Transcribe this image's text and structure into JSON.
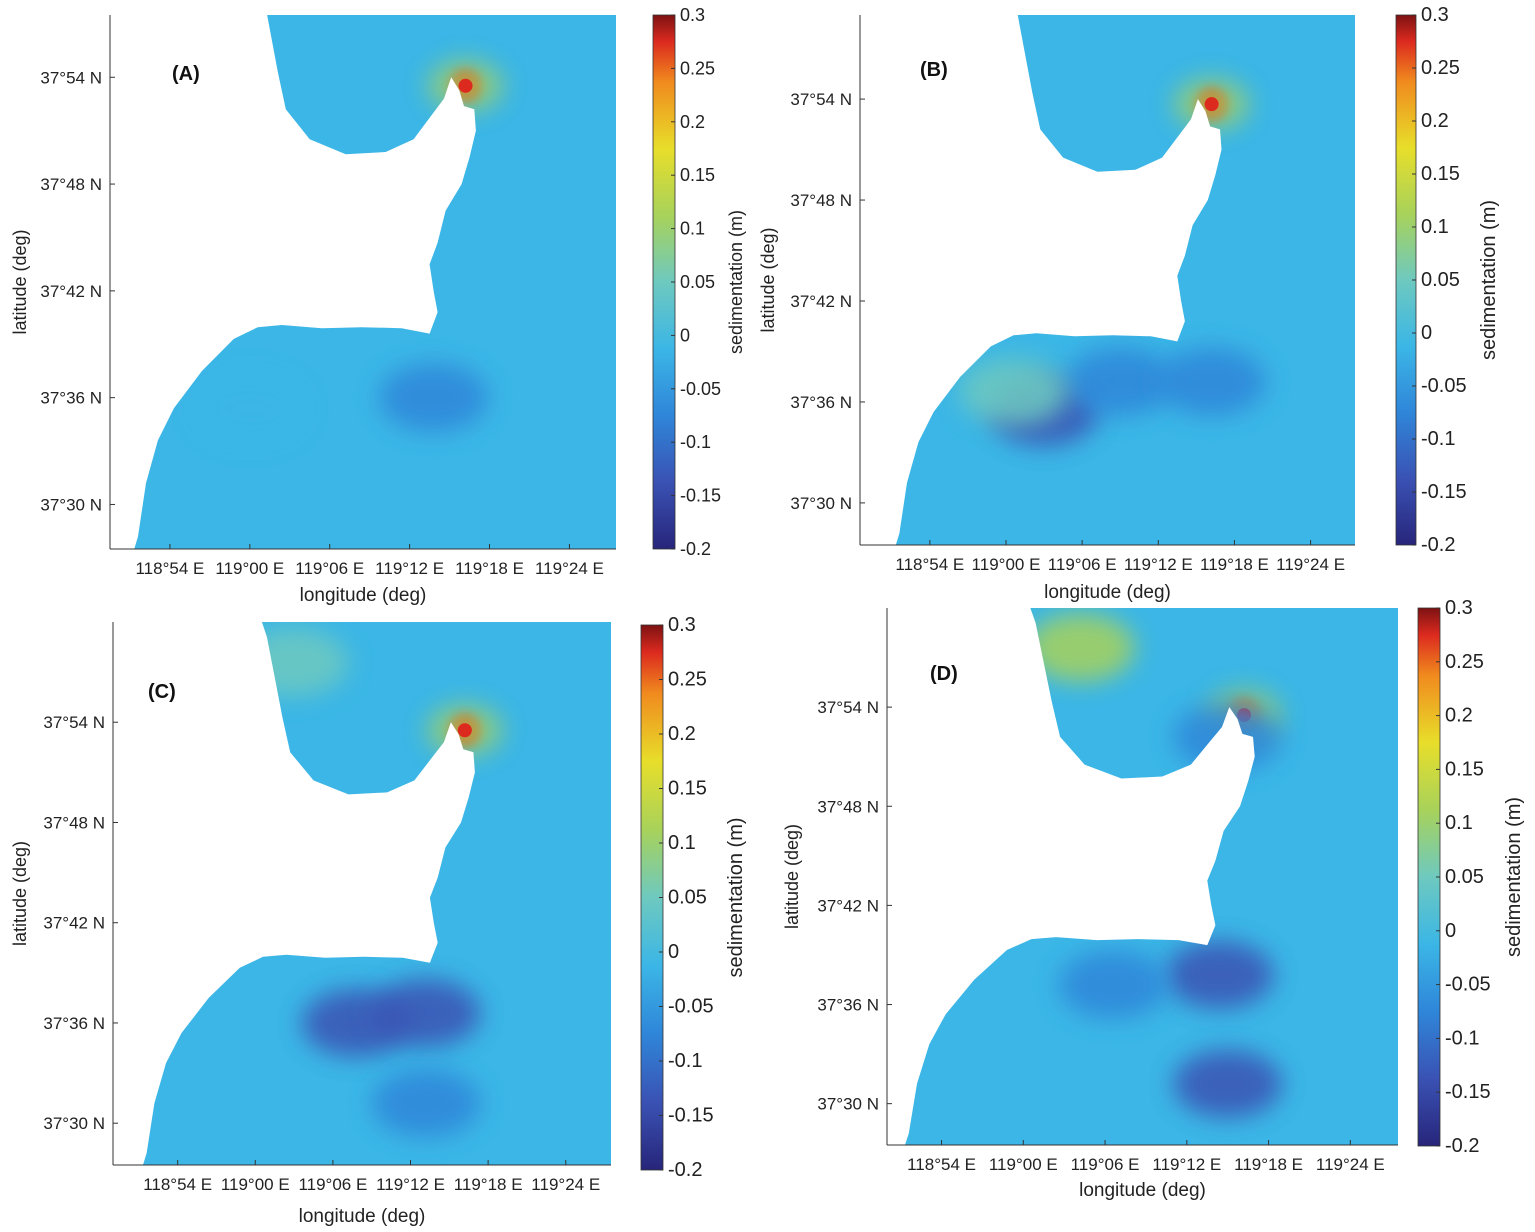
{
  "chart_data": [
    {
      "type": "heatmap",
      "panel_label": "(A)",
      "xlabel": "longitude (deg)",
      "ylabel": "latitude (deg)",
      "colorbar_label": "sedimentation (m)",
      "x_ticks": [
        "118°54 E",
        "119°00 E",
        "119°06 E",
        "119°12 E",
        "119°18 E",
        "119°24 E"
      ],
      "y_ticks": [
        "37°54 N",
        "37°48 N",
        "37°42 N",
        "37°36 N",
        "37°30 N"
      ],
      "colorbar_ticks": [
        "0.3",
        "0.25",
        "0.2",
        "0.15",
        "0.1",
        "0.05",
        "0",
        "-0.05",
        "-0.1",
        "-0.15",
        "-0.2"
      ],
      "clim": [
        -0.2,
        0.3
      ],
      "hotspots": [
        {
          "lon": 119.27,
          "lat": 37.892,
          "value": 0.28
        },
        {
          "lon": 119.23,
          "lat": 37.6,
          "value": -0.05
        },
        {
          "lon": 119.0,
          "lat": 37.59,
          "value": -0.03
        }
      ]
    },
    {
      "type": "heatmap",
      "panel_label": "(B)",
      "xlabel": "longitude (deg)",
      "ylabel": "latitude (deg)",
      "colorbar_label": "sedimentation (m)",
      "x_ticks": [
        "118°54 E",
        "119°00 E",
        "119°06 E",
        "119°12 E",
        "119°18 E",
        "119°24 E"
      ],
      "y_ticks": [
        "37°54 N",
        "37°48 N",
        "37°42 N",
        "37°36 N",
        "37°30 N"
      ],
      "colorbar_ticks": [
        "0.3",
        "0.25",
        "0.2",
        "0.15",
        "0.1",
        "0.05",
        "0",
        "-0.05",
        "-0.1",
        "-0.15",
        "-0.2"
      ],
      "clim": [
        -0.2,
        0.3
      ],
      "hotspots": [
        {
          "lon": 119.27,
          "lat": 37.895,
          "value": 0.28
        },
        {
          "lon": 119.05,
          "lat": 37.59,
          "value": -0.12
        },
        {
          "lon": 119.15,
          "lat": 37.62,
          "value": -0.1
        },
        {
          "lon": 119.27,
          "lat": 37.62,
          "value": -0.08
        },
        {
          "lon": 119.01,
          "lat": 37.61,
          "value": 0.06
        }
      ]
    },
    {
      "type": "heatmap",
      "panel_label": "(C)",
      "xlabel": "longitude (deg)",
      "ylabel": "latitude (deg)",
      "colorbar_label": "sedimentation (m)",
      "x_ticks": [
        "118°54 E",
        "119°00 E",
        "119°06 E",
        "119°12 E",
        "119°18 E",
        "119°24 E"
      ],
      "y_ticks": [
        "37°54 N",
        "37°48 N",
        "37°42 N",
        "37°36 N",
        "37°30 N"
      ],
      "colorbar_ticks": [
        "0.3",
        "0.25",
        "0.2",
        "0.15",
        "0.1",
        "0.05",
        "0",
        "-0.05",
        "-0.1",
        "-0.15",
        "-0.2"
      ],
      "clim": [
        -0.2,
        0.3
      ],
      "hotspots": [
        {
          "lon": 119.27,
          "lat": 37.892,
          "value": 0.28
        },
        {
          "lon": 119.13,
          "lat": 37.6,
          "value": -0.12
        },
        {
          "lon": 119.22,
          "lat": 37.61,
          "value": -0.11
        },
        {
          "lon": 119.22,
          "lat": 37.52,
          "value": -0.09
        },
        {
          "lon": 119.05,
          "lat": 37.96,
          "value": 0.07
        }
      ]
    },
    {
      "type": "heatmap",
      "panel_label": "(D)",
      "xlabel": "longitude (deg)",
      "ylabel": "latitude (deg)",
      "colorbar_label": "sedimentation (m)",
      "x_ticks": [
        "118°54 E",
        "119°00 E",
        "119°06 E",
        "119°12 E",
        "119°18 E",
        "119°24 E"
      ],
      "y_ticks": [
        "37°54 N",
        "37°48 N",
        "37°42 N",
        "37°36 N",
        "37°30 N"
      ],
      "colorbar_ticks": [
        "0.3",
        "0.25",
        "0.2",
        "0.15",
        "0.1",
        "0.05",
        "0",
        "-0.05",
        "-0.1",
        "-0.15",
        "-0.2"
      ],
      "clim": [
        -0.2,
        0.3
      ],
      "hotspots": [
        {
          "lon": 119.27,
          "lat": 37.892,
          "value": 0.28
        },
        {
          "lon": 119.24,
          "lat": 37.63,
          "value": -0.13
        },
        {
          "lon": 119.11,
          "lat": 37.62,
          "value": -0.1
        },
        {
          "lon": 119.25,
          "lat": 37.52,
          "value": -0.11
        },
        {
          "lon": 119.25,
          "lat": 37.87,
          "value": -0.09
        },
        {
          "lon": 119.07,
          "lat": 37.96,
          "value": 0.12
        }
      ]
    }
  ]
}
